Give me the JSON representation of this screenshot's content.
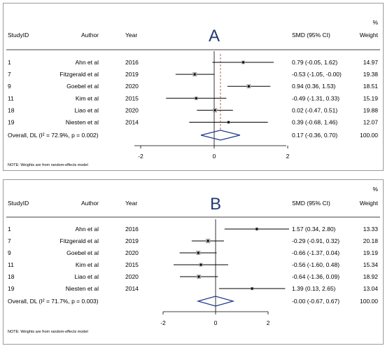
{
  "chart_data": [
    {
      "type": "forest",
      "panel_letter": "A",
      "headers": {
        "study": "StudyID",
        "author": "Author",
        "year": "Year",
        "smd": "SMD (95% CI)",
        "weight_pct": "%",
        "weight": "Weight"
      },
      "rows": [
        {
          "id": "1",
          "author": "Ahn et al",
          "year": "2016",
          "smd": 0.79,
          "lo": -0.05,
          "hi": 1.62,
          "ci_text": "0.79 (-0.05, 1.62)",
          "weight": "14.97"
        },
        {
          "id": "7",
          "author": "Fitzgerald et al",
          "year": "2019",
          "smd": -0.53,
          "lo": -1.05,
          "hi": 0.0,
          "ci_text": "-0.53 (-1.05, -0.00)",
          "weight": "19.38"
        },
        {
          "id": "9",
          "author": "Goebel et al",
          "year": "2020",
          "smd": 0.94,
          "lo": 0.36,
          "hi": 1.53,
          "ci_text": "0.94 (0.36, 1.53)",
          "weight": "18.51"
        },
        {
          "id": "11",
          "author": "Kim et al",
          "year": "2015",
          "smd": -0.49,
          "lo": -1.31,
          "hi": 0.33,
          "ci_text": "-0.49 (-1.31, 0.33)",
          "weight": "15.19"
        },
        {
          "id": "18",
          "author": "Liao et al",
          "year": "2020",
          "smd": 0.02,
          "lo": -0.47,
          "hi": 0.51,
          "ci_text": "0.02 (-0.47, 0.51)",
          "weight": "19.88"
        },
        {
          "id": "19",
          "author": "Niesten et al",
          "year": "2014",
          "smd": 0.39,
          "lo": -0.68,
          "hi": 1.46,
          "ci_text": "0.39 (-0.68, 1.46)",
          "weight": "12.07"
        }
      ],
      "overall": {
        "label": "Overall, DL (I² = 72.9%, p = 0.002)",
        "smd": 0.17,
        "lo": -0.36,
        "hi": 0.7,
        "ci_text": "0.17 (-0.36, 0.70)",
        "weight": "100.00"
      },
      "x_ticks": [
        -2,
        0,
        2
      ],
      "x_tick_labels": [
        "-2",
        "0",
        "2"
      ],
      "xlim": [
        -2.0,
        2.0
      ],
      "note": "NOTE: Weights are from random-effects model"
    },
    {
      "type": "forest",
      "panel_letter": "B",
      "headers": {
        "study": "StudyID",
        "author": "Author",
        "year": "Year",
        "smd": "SMD (95% CI)",
        "weight_pct": "%",
        "weight": "Weight"
      },
      "rows": [
        {
          "id": "1",
          "author": "Ahn et al",
          "year": "2016",
          "smd": 1.57,
          "lo": 0.34,
          "hi": 2.8,
          "ci_text": "1.57 (0.34, 2.80)",
          "weight": "13.33"
        },
        {
          "id": "7",
          "author": "Fitzgerald et al",
          "year": "2019",
          "smd": -0.29,
          "lo": -0.91,
          "hi": 0.32,
          "ci_text": "-0.29 (-0.91, 0.32)",
          "weight": "20.18"
        },
        {
          "id": "9",
          "author": "Goebel et al",
          "year": "2020",
          "smd": -0.66,
          "lo": -1.37,
          "hi": 0.04,
          "ci_text": "-0.66 (-1.37, 0.04)",
          "weight": "19.19"
        },
        {
          "id": "11",
          "author": "Kim et al",
          "year": "2015",
          "smd": -0.56,
          "lo": -1.6,
          "hi": 0.48,
          "ci_text": "-0.56 (-1.60, 0.48)",
          "weight": "15.34"
        },
        {
          "id": "18",
          "author": "Liao et al",
          "year": "2020",
          "smd": -0.64,
          "lo": -1.36,
          "hi": 0.09,
          "ci_text": "-0.64 (-1.36, 0.09)",
          "weight": "18.92"
        },
        {
          "id": "19",
          "author": "Niesten et al",
          "year": "2014",
          "smd": 1.39,
          "lo": 0.13,
          "hi": 2.65,
          "ci_text": "1.39 (0.13, 2.65)",
          "weight": "13.04"
        }
      ],
      "overall": {
        "label": "Overall, DL (I² = 71.7%, p = 0.003)",
        "smd": 0.0,
        "lo": -0.67,
        "hi": 0.67,
        "ci_text": "-0.00 (-0.67, 0.67)",
        "weight": "100.00"
      },
      "x_ticks": [
        -2,
        0,
        2
      ],
      "x_tick_labels": [
        "-2",
        "0",
        "2"
      ],
      "xlim": [
        -2.0,
        2.0
      ],
      "note": "NOTE: Weights are from random-effects model"
    }
  ]
}
